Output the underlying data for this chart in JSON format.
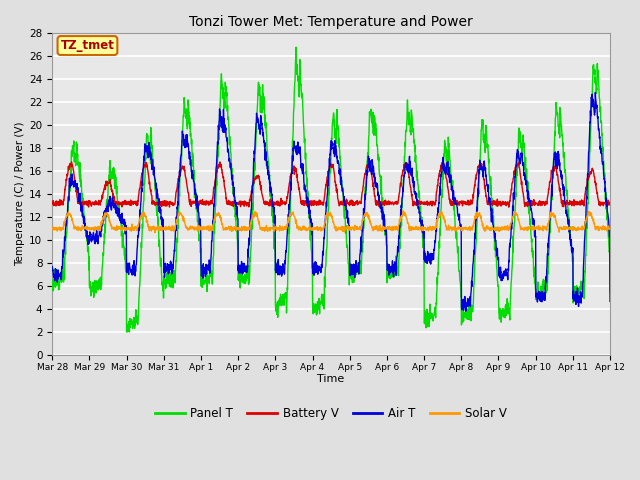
{
  "title": "Tonzi Tower Met: Temperature and Power",
  "xlabel": "Time",
  "ylabel": "Temperature (C) / Power (V)",
  "annotation": "TZ_tmet",
  "ylim": [
    0,
    28
  ],
  "yticks": [
    0,
    2,
    4,
    6,
    8,
    10,
    12,
    14,
    16,
    18,
    20,
    22,
    24,
    26,
    28
  ],
  "x_tick_labels": [
    "Mar 28",
    "Mar 29",
    "Mar 30",
    "Mar 31",
    "Apr 1",
    "Apr 2",
    "Apr 3",
    "Apr 4",
    "Apr 5",
    "Apr 6",
    "Apr 7",
    "Apr 8",
    "Apr 9",
    "Apr 10",
    "Apr 11",
    "Apr 12"
  ],
  "colors": {
    "panel_t": "#00DD00",
    "battery_v": "#DD0000",
    "air_t": "#0000DD",
    "solar_v": "#FF9900"
  },
  "legend_labels": [
    "Panel T",
    "Battery V",
    "Air T",
    "Solar V"
  ],
  "bg_color": "#E0E0E0",
  "plot_bg": "#E8E8E8",
  "grid_color": "#FFFFFF",
  "num_days": 15,
  "points_per_day": 144
}
